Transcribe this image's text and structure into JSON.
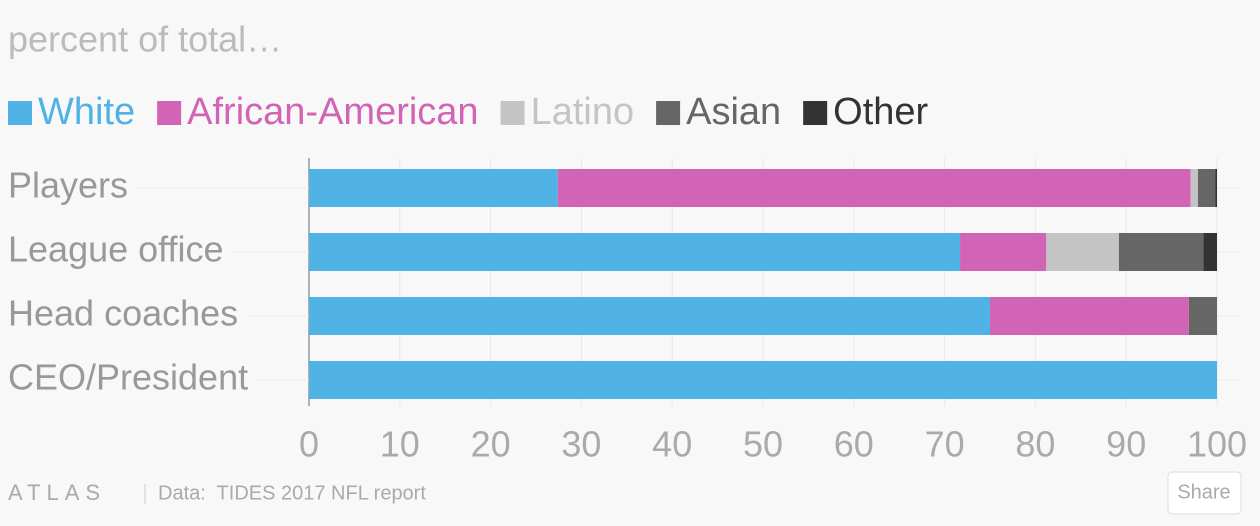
{
  "chart_data": {
    "type": "stacked-barh",
    "subtitle": "percent of total…",
    "categories": [
      "Players",
      "League office",
      "Head coaches",
      "CEO/President"
    ],
    "series": [
      {
        "name": "White",
        "color": "#51b2e5",
        "values": [
          27.4,
          71.7,
          75,
          100
        ]
      },
      {
        "name": "African-American",
        "color": "#d264b6",
        "values": [
          69.7,
          9.5,
          21.9,
          0
        ]
      },
      {
        "name": "Latino",
        "color": "#c4c4c4",
        "values": [
          0.8,
          8,
          0,
          0
        ]
      },
      {
        "name": "Asian",
        "color": "#666666",
        "values": [
          1.9,
          9.3,
          3.1,
          0
        ]
      },
      {
        "name": "Other",
        "color": "#333333",
        "values": [
          0.2,
          1.5,
          0,
          0
        ]
      }
    ],
    "xlim": [
      0,
      100
    ],
    "xticks": [
      0,
      10,
      20,
      30,
      40,
      50,
      60,
      70,
      80,
      90,
      100
    ],
    "grid": true,
    "logo": "ATLAS",
    "source": "Data:  TIDES 2017 NFL report",
    "share": "Share"
  }
}
